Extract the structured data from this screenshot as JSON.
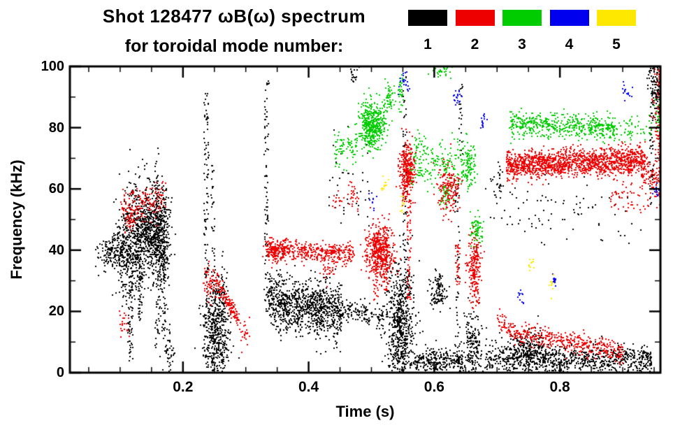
{
  "header": {
    "title_line1": "Shot 128477 ωB(ω) spectrum",
    "title_line2": "for toroidal mode number:"
  },
  "legend": {
    "entries": [
      {
        "label": "1",
        "color": "#000000"
      },
      {
        "label": "2",
        "color": "#ee0000"
      },
      {
        "label": "3",
        "color": "#00cc00"
      },
      {
        "label": "4",
        "color": "#0000ee"
      },
      {
        "label": "5",
        "color": "#ffe800"
      }
    ]
  },
  "chart_data": {
    "type": "scatter",
    "title": "Shot 128477 ωB(ω) spectrum for toroidal mode number",
    "shot": "128477",
    "xlabel": "Time (s)",
    "ylabel": "Frequency (kHz)",
    "xlim": [
      0.02,
      0.96
    ],
    "ylim": [
      0,
      100
    ],
    "xticks": [
      0.2,
      0.4,
      0.6,
      0.8
    ],
    "xtick_labels": [
      "0.2",
      "0.4",
      "0.6",
      "0.8"
    ],
    "yticks": [
      0,
      20,
      40,
      60,
      80,
      100
    ],
    "ytick_labels": [
      "0",
      "20",
      "40",
      "60",
      "80",
      "100"
    ],
    "x_minor_step": 0.05,
    "y_minor_step": 10,
    "grid": false,
    "legend_position": "top-right",
    "point_size": 2,
    "series": [
      {
        "name": "toroidal mode n=1",
        "mode_number": 1,
        "color": "#000000",
        "clusters": [
          {
            "shape": "blob",
            "t": 0.085,
            "f": 39,
            "st": 0.01,
            "sf": 3,
            "n": 140
          },
          {
            "shape": "blob",
            "t": 0.105,
            "f": 40,
            "st": 0.007,
            "sf": 8,
            "n": 220
          },
          {
            "shape": "blob",
            "t": 0.125,
            "f": 44,
            "st": 0.009,
            "sf": 9,
            "n": 320
          },
          {
            "shape": "blob",
            "t": 0.15,
            "f": 47,
            "st": 0.011,
            "sf": 7,
            "n": 520
          },
          {
            "shape": "blob",
            "t": 0.166,
            "f": 42,
            "st": 0.007,
            "sf": 10,
            "n": 240
          },
          {
            "shape": "streak",
            "t": 0.115,
            "f0": 4,
            "f1": 32,
            "w": 0.004,
            "n": 60
          },
          {
            "shape": "streak",
            "t": 0.131,
            "f0": 17,
            "f1": 33,
            "w": 0.003,
            "n": 35
          },
          {
            "shape": "streak",
            "t": 0.158,
            "f0": 8,
            "f1": 74,
            "w": 0.003,
            "n": 70
          },
          {
            "shape": "streak",
            "t": 0.168,
            "f0": 10,
            "f1": 60,
            "w": 0.003,
            "n": 45
          },
          {
            "shape": "blob",
            "t": 0.176,
            "f": 8,
            "st": 0.005,
            "sf": 4,
            "n": 50
          },
          {
            "shape": "streak",
            "t": 0.236,
            "f0": 2,
            "f1": 92,
            "w": 0.004,
            "n": 120
          },
          {
            "shape": "streak",
            "t": 0.247,
            "f0": 0,
            "f1": 68,
            "w": 0.003,
            "n": 70
          },
          {
            "shape": "blob",
            "t": 0.252,
            "f": 14,
            "st": 0.011,
            "sf": 8,
            "n": 420
          },
          {
            "shape": "streak",
            "t": 0.263,
            "f0": 0,
            "f1": 40,
            "w": 0.003,
            "n": 45
          },
          {
            "shape": "streak",
            "t": 0.332,
            "f0": 20,
            "f1": 96,
            "w": 0.0035,
            "n": 90
          },
          {
            "shape": "band",
            "t0": 0.335,
            "t1": 0.452,
            "fa": 24,
            "fb": 20,
            "sf": 4.5,
            "n": 950
          },
          {
            "shape": "band",
            "t0": 0.452,
            "t1": 0.52,
            "fa": 21,
            "fb": 18,
            "sf": 1.8,
            "n": 140
          },
          {
            "shape": "band",
            "t0": 0.43,
            "t1": 0.5,
            "fa": 62,
            "fb": 60,
            "sf": 8,
            "n": 40
          },
          {
            "shape": "blob",
            "t": 0.47,
            "f": 97,
            "st": 0.005,
            "sf": 2,
            "n": 18
          },
          {
            "shape": "blob",
            "t": 0.545,
            "f": 15,
            "st": 0.011,
            "sf": 11,
            "n": 700
          },
          {
            "shape": "streak",
            "t": 0.552,
            "f0": 40,
            "f1": 97,
            "w": 0.003,
            "n": 45
          },
          {
            "shape": "band",
            "t0": 0.565,
            "t1": 0.645,
            "fa": 4,
            "fb": 4,
            "sf": 2,
            "n": 260
          },
          {
            "shape": "blob",
            "t": 0.605,
            "f": 27,
            "st": 0.007,
            "sf": 3,
            "n": 110
          },
          {
            "shape": "streak",
            "t": 0.636,
            "f0": 0,
            "f1": 62,
            "w": 0.004,
            "n": 55
          },
          {
            "shape": "streak",
            "t": 0.641,
            "f0": 70,
            "f1": 95,
            "w": 0.003,
            "n": 22
          },
          {
            "shape": "blob",
            "t": 0.66,
            "f": 9,
            "st": 0.007,
            "sf": 5,
            "n": 180
          },
          {
            "shape": "band",
            "t0": 0.68,
            "t1": 0.945,
            "fa": 5,
            "fb": 4,
            "sf": 2.5,
            "n": 850
          },
          {
            "shape": "blob",
            "t": 0.75,
            "f": 8,
            "st": 0.018,
            "sf": 3,
            "n": 220
          },
          {
            "shape": "band",
            "t0": 0.68,
            "t1": 0.93,
            "fa": 55,
            "fb": 51,
            "sf": 5,
            "n": 85
          },
          {
            "shape": "blob",
            "t": 0.7,
            "f": 63,
            "st": 0.005,
            "sf": 3,
            "n": 25
          },
          {
            "shape": "blob",
            "t": 0.953,
            "f": 93,
            "st": 0.007,
            "sf": 5,
            "n": 140
          },
          {
            "shape": "streak",
            "t": 0.945,
            "f0": 55,
            "f1": 100,
            "w": 0.003,
            "n": 40
          }
        ]
      },
      {
        "name": "toroidal mode n=2",
        "mode_number": 2,
        "color": "#ee0000",
        "clusters": [
          {
            "shape": "band",
            "t0": 0.1,
            "t1": 0.172,
            "fa": 55,
            "fb": 57,
            "sf": 3,
            "n": 150
          },
          {
            "shape": "blob",
            "t": 0.115,
            "f": 50,
            "st": 0.005,
            "sf": 2.5,
            "n": 40
          },
          {
            "shape": "blob",
            "t": 0.106,
            "f": 16,
            "st": 0.004,
            "sf": 3,
            "n": 22
          },
          {
            "shape": "blob",
            "t": 0.242,
            "f": 30,
            "st": 0.005,
            "sf": 3,
            "n": 55
          },
          {
            "shape": "band",
            "t0": 0.252,
            "t1": 0.288,
            "fa": 30,
            "fb": 17,
            "sf": 1.5,
            "n": 130
          },
          {
            "shape": "blob",
            "t": 0.296,
            "f": 13,
            "st": 0.004,
            "sf": 2,
            "n": 22
          },
          {
            "shape": "band",
            "t0": 0.33,
            "t1": 0.472,
            "fa": 40.5,
            "fb": 39,
            "sf": 1.6,
            "n": 420
          },
          {
            "shape": "blob",
            "t": 0.345,
            "f": 40,
            "st": 0.007,
            "sf": 2,
            "n": 110
          },
          {
            "shape": "blob",
            "t": 0.428,
            "f": 34,
            "st": 0.005,
            "sf": 1.5,
            "n": 26
          },
          {
            "shape": "blob",
            "t": 0.512,
            "f": 40,
            "st": 0.011,
            "sf": 4.5,
            "n": 420
          },
          {
            "shape": "streak",
            "t": 0.506,
            "f0": 24,
            "f1": 46,
            "w": 0.0035,
            "n": 55
          },
          {
            "shape": "streak",
            "t": 0.521,
            "f0": 27,
            "f1": 48,
            "w": 0.0035,
            "n": 55
          },
          {
            "shape": "blob",
            "t": 0.556,
            "f": 66,
            "st": 0.006,
            "sf": 4.5,
            "n": 330
          },
          {
            "shape": "streak",
            "t": 0.559,
            "f0": 24,
            "f1": 58,
            "w": 0.0035,
            "n": 60
          },
          {
            "shape": "blob",
            "t": 0.621,
            "f": 60,
            "st": 0.009,
            "sf": 4,
            "n": 190
          },
          {
            "shape": "streak",
            "t": 0.636,
            "f0": 28,
            "f1": 42,
            "w": 0.0035,
            "n": 35
          },
          {
            "shape": "blob",
            "t": 0.663,
            "f": 35,
            "st": 0.005,
            "sf": 6,
            "n": 200
          },
          {
            "shape": "band",
            "t0": 0.7,
            "t1": 0.742,
            "fa": 18,
            "fb": 11,
            "sf": 1.5,
            "n": 85
          },
          {
            "shape": "band",
            "t0": 0.714,
            "t1": 0.935,
            "fa": 68,
            "fb": 69.5,
            "sf": 2.2,
            "n": 1450
          },
          {
            "shape": "band",
            "t0": 0.93,
            "t1": 0.958,
            "fa": 67,
            "fb": 61,
            "sf": 3,
            "n": 90
          },
          {
            "shape": "band",
            "t0": 0.742,
            "t1": 0.9,
            "fa": 13,
            "fb": 7,
            "sf": 1.8,
            "n": 340
          },
          {
            "shape": "band",
            "t0": 0.88,
            "t1": 0.94,
            "fa": 60,
            "fb": 56,
            "sf": 3,
            "n": 55
          },
          {
            "shape": "blob",
            "t": 0.962,
            "f": 80,
            "st": 0.006,
            "sf": 8,
            "n": 280
          },
          {
            "shape": "streak",
            "t": 0.968,
            "f0": 60,
            "f1": 93,
            "w": 0.004,
            "n": 50
          },
          {
            "shape": "blob",
            "t": 0.957,
            "f": 97,
            "st": 0.004,
            "sf": 2,
            "n": 25
          },
          {
            "shape": "blob",
            "t": 0.47,
            "f": 57,
            "st": 0.005,
            "sf": 3,
            "n": 28
          },
          {
            "shape": "blob",
            "t": 0.443,
            "f": 56,
            "st": 0.004,
            "sf": 2,
            "n": 14
          }
        ]
      },
      {
        "name": "toroidal mode n=3",
        "mode_number": 3,
        "color": "#00cc00",
        "clusters": [
          {
            "shape": "band",
            "t0": 0.44,
            "t1": 0.476,
            "fa": 73,
            "fb": 76,
            "sf": 3,
            "n": 75
          },
          {
            "shape": "blob",
            "t": 0.5,
            "f": 81,
            "st": 0.011,
            "sf": 4,
            "n": 430
          },
          {
            "shape": "blob",
            "t": 0.526,
            "f": 90,
            "st": 0.005,
            "sf": 3,
            "n": 55
          },
          {
            "shape": "streak",
            "t": 0.546,
            "f0": 85,
            "f1": 98,
            "w": 0.004,
            "n": 35
          },
          {
            "shape": "band",
            "t0": 0.56,
            "t1": 0.665,
            "fa": 68,
            "fb": 70,
            "sf": 4,
            "n": 200
          },
          {
            "shape": "blob",
            "t": 0.616,
            "f": 58,
            "st": 0.005,
            "sf": 2,
            "n": 28
          },
          {
            "shape": "blob",
            "t": 0.61,
            "f": 99,
            "st": 0.008,
            "sf": 1.5,
            "n": 35
          },
          {
            "shape": "blob",
            "t": 0.652,
            "f": 68,
            "st": 0.006,
            "sf": 3,
            "n": 70
          },
          {
            "shape": "blob",
            "t": 0.666,
            "f": 47,
            "st": 0.005,
            "sf": 2.5,
            "n": 65
          },
          {
            "shape": "band",
            "t0": 0.718,
            "t1": 0.89,
            "fa": 81.5,
            "fb": 80,
            "sf": 2,
            "n": 520
          },
          {
            "shape": "band",
            "t0": 0.89,
            "t1": 0.945,
            "fa": 80,
            "fb": 79,
            "sf": 2,
            "n": 50
          },
          {
            "shape": "blob",
            "t": 0.956,
            "f": 83,
            "st": 0.004,
            "sf": 3,
            "n": 22
          },
          {
            "shape": "blob",
            "t": 0.576,
            "f": 75,
            "st": 0.004,
            "sf": 2,
            "n": 18
          }
        ]
      },
      {
        "name": "toroidal mode n=4",
        "mode_number": 4,
        "color": "#0000ee",
        "clusters": [
          {
            "shape": "blob",
            "t": 0.55,
            "f": 96,
            "st": 0.004,
            "sf": 2,
            "n": 22
          },
          {
            "shape": "blob",
            "t": 0.636,
            "f": 90,
            "st": 0.004,
            "sf": 1.5,
            "n": 18
          },
          {
            "shape": "blob",
            "t": 0.676,
            "f": 82,
            "st": 0.003,
            "sf": 1.5,
            "n": 14
          },
          {
            "shape": "blob",
            "t": 0.735,
            "f": 25,
            "st": 0.003,
            "sf": 1.5,
            "n": 12
          },
          {
            "shape": "blob",
            "t": 0.79,
            "f": 30,
            "st": 0.003,
            "sf": 1.5,
            "n": 12
          },
          {
            "shape": "blob",
            "t": 0.905,
            "f": 92,
            "st": 0.004,
            "sf": 1.5,
            "n": 14
          },
          {
            "shape": "blob",
            "t": 0.952,
            "f": 60,
            "st": 0.003,
            "sf": 1.5,
            "n": 12
          },
          {
            "shape": "blob",
            "t": 0.5,
            "f": 57,
            "st": 0.003,
            "sf": 1.5,
            "n": 10
          }
        ]
      },
      {
        "name": "toroidal mode n=5",
        "mode_number": 5,
        "color": "#ffe800",
        "clusters": [
          {
            "shape": "blob",
            "t": 0.52,
            "f": 62,
            "st": 0.003,
            "sf": 1.5,
            "n": 12
          },
          {
            "shape": "blob",
            "t": 0.548,
            "f": 56,
            "st": 0.003,
            "sf": 1.5,
            "n": 10
          },
          {
            "shape": "blob",
            "t": 0.755,
            "f": 36,
            "st": 0.003,
            "sf": 1.5,
            "n": 10
          },
          {
            "shape": "blob",
            "t": 0.786,
            "f": 29,
            "st": 0.003,
            "sf": 1.5,
            "n": 10
          }
        ]
      }
    ]
  }
}
